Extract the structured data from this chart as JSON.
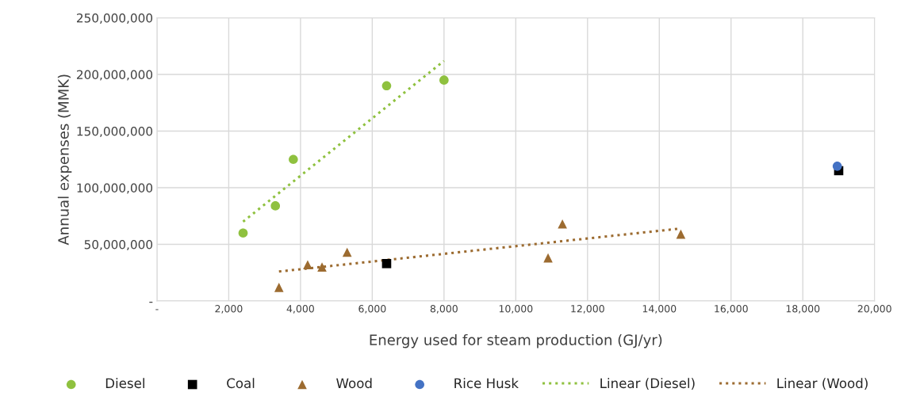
{
  "chart_data": {
    "type": "scatter",
    "xlabel": "Energy used for steam production (GJ/yr)",
    "ylabel": "Annual expenses (MMK)",
    "xlim": [
      0,
      20000
    ],
    "xticks": [
      {
        "value": 0,
        "label": "-"
      },
      {
        "value": 2000,
        "label": "2,000"
      },
      {
        "value": 4000,
        "label": "4,000"
      },
      {
        "value": 6000,
        "label": "6,000"
      },
      {
        "value": 8000,
        "label": "8,000"
      },
      {
        "value": 10000,
        "label": "10,000"
      },
      {
        "value": 12000,
        "label": "12,000"
      },
      {
        "value": 14000,
        "label": "14,000"
      },
      {
        "value": 16000,
        "label": "16,000"
      },
      {
        "value": 18000,
        "label": "18,000"
      },
      {
        "value": 20000,
        "label": "20,000"
      }
    ],
    "ylim": [
      0,
      250000000
    ],
    "yticks": [
      {
        "value": 0,
        "label": "-"
      },
      {
        "value": 50000000,
        "label": "50,000,000"
      },
      {
        "value": 100000000,
        "label": "100,000,000"
      },
      {
        "value": 150000000,
        "label": "150,000,000"
      },
      {
        "value": 200000000,
        "label": "200,000,000"
      },
      {
        "value": 250000000,
        "label": "250,000,000"
      }
    ],
    "grid": true,
    "legend": "bottom",
    "series": [
      {
        "name": "Diesel",
        "marker": "circle",
        "color": "#8fc13f",
        "x": [
          2400,
          3300,
          3800,
          6400,
          8000
        ],
        "values": [
          60000000,
          84000000,
          125000000,
          190000000,
          195000000
        ]
      },
      {
        "name": "Coal",
        "marker": "square",
        "color": "#000000",
        "x": [
          6400,
          19000
        ],
        "values": [
          33000000,
          115000000
        ]
      },
      {
        "name": "Wood",
        "marker": "triangle",
        "color": "#9c6b30",
        "x": [
          3400,
          4200,
          4600,
          5300,
          10900,
          11300,
          14600
        ],
        "values": [
          12000000,
          32000000,
          30000000,
          43000000,
          38000000,
          68000000,
          59000000
        ]
      },
      {
        "name": "Rice Husk",
        "marker": "circle",
        "color": "#4472c4",
        "x": [
          18960
        ],
        "values": [
          119000000
        ]
      },
      {
        "name": "Linear (Diesel)",
        "type": "line",
        "line_style": "dotted",
        "color": "#8fc13f",
        "x": [
          2400,
          8000
        ],
        "values": [
          70000000,
          212000000
        ]
      },
      {
        "name": "Linear (Wood)",
        "type": "line",
        "line_style": "dotted",
        "color": "#9c6b30",
        "x": [
          3400,
          14600
        ],
        "values": [
          26000000,
          64000000
        ]
      }
    ]
  }
}
